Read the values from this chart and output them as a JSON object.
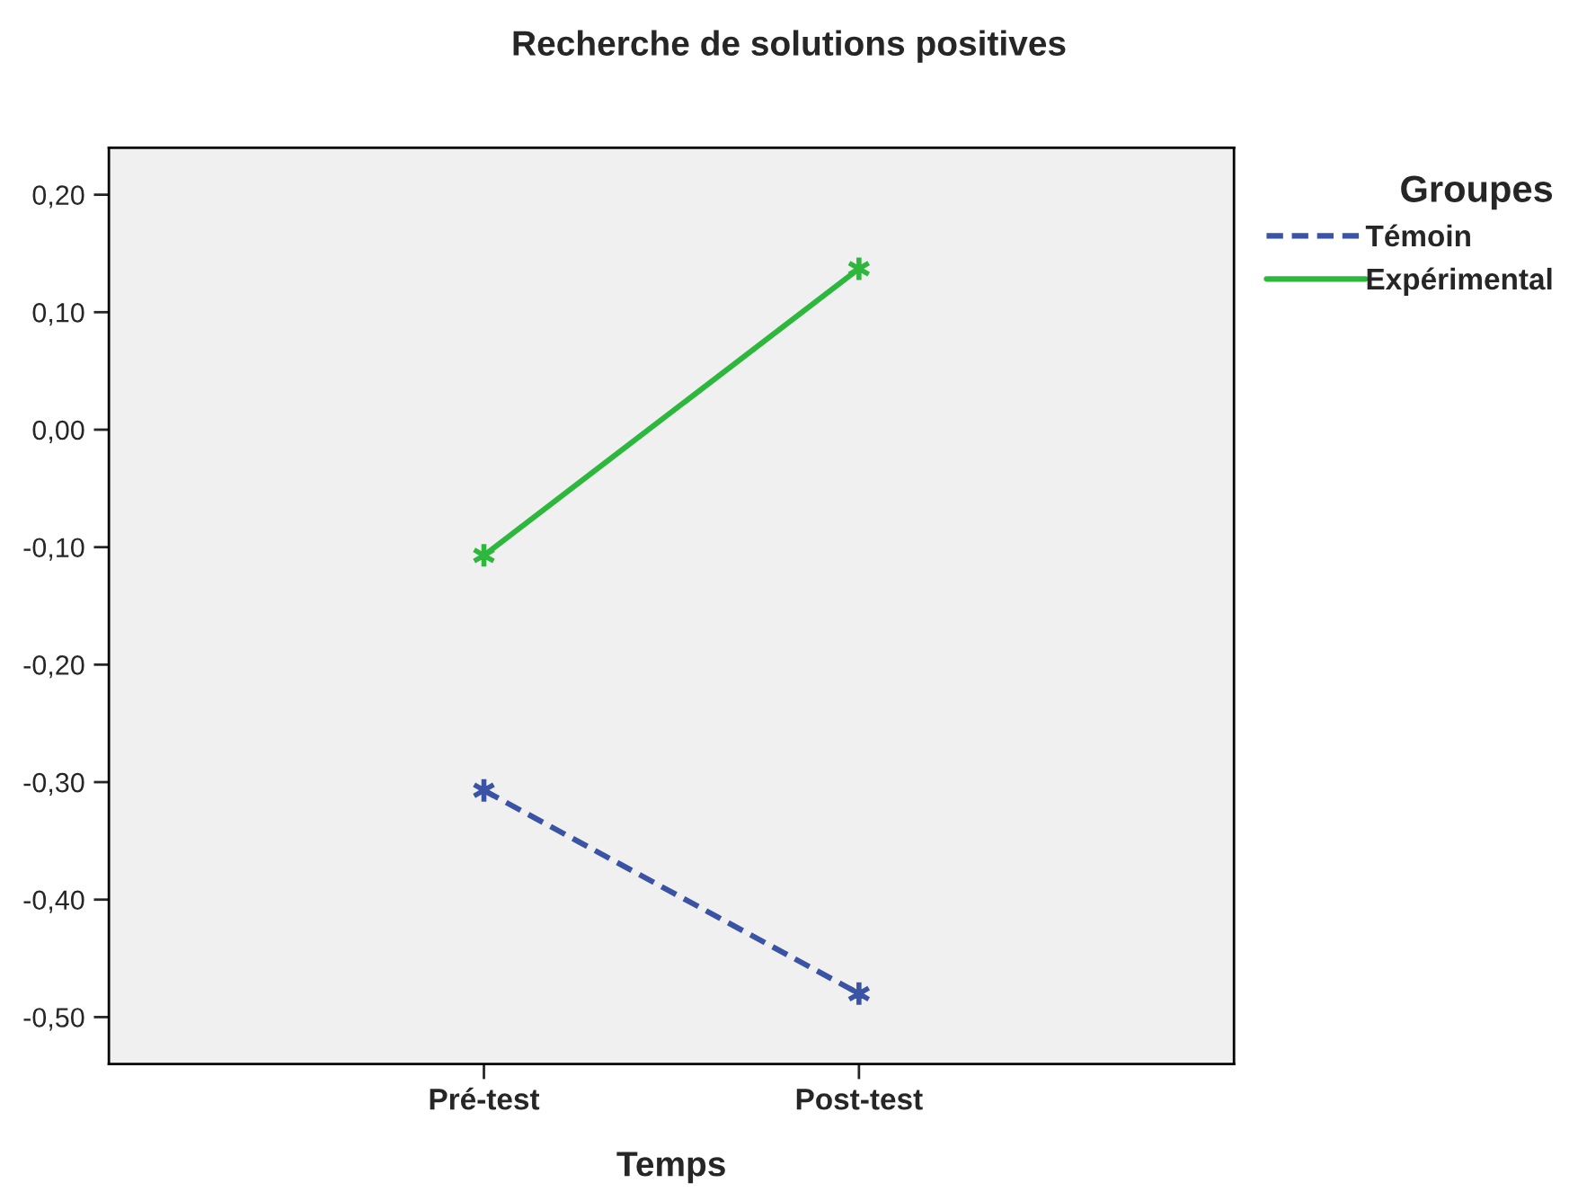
{
  "chart_data": {
    "type": "line",
    "title": "Recherche de solutions positives",
    "xlabel": "Temps",
    "legend_title": "Groupes",
    "categories": [
      "Pré-test",
      "Post-test"
    ],
    "series": [
      {
        "name": "Témoin",
        "color": "#3a53a4",
        "values": [
          -0.307,
          -0.48
        ],
        "line_style": "dashed"
      },
      {
        "name": "Expérimental",
        "color": "#2db83d",
        "values": [
          -0.107,
          0.137
        ],
        "line_style": "solid"
      }
    ],
    "ylim": [
      -0.54,
      0.24
    ],
    "yticks": [
      {
        "value": -0.5,
        "label": "-0,50"
      },
      {
        "value": -0.4,
        "label": "-0,40"
      },
      {
        "value": -0.3,
        "label": "-0,30"
      },
      {
        "value": -0.2,
        "label": "-0,20"
      },
      {
        "value": -0.1,
        "label": "-0,10"
      },
      {
        "value": 0,
        "label": "0,00"
      },
      {
        "value": 0.1,
        "label": "0,10"
      },
      {
        "value": 0.2,
        "label": "0,20"
      }
    ],
    "marker": "cross",
    "legend": "top right",
    "grid": false
  }
}
